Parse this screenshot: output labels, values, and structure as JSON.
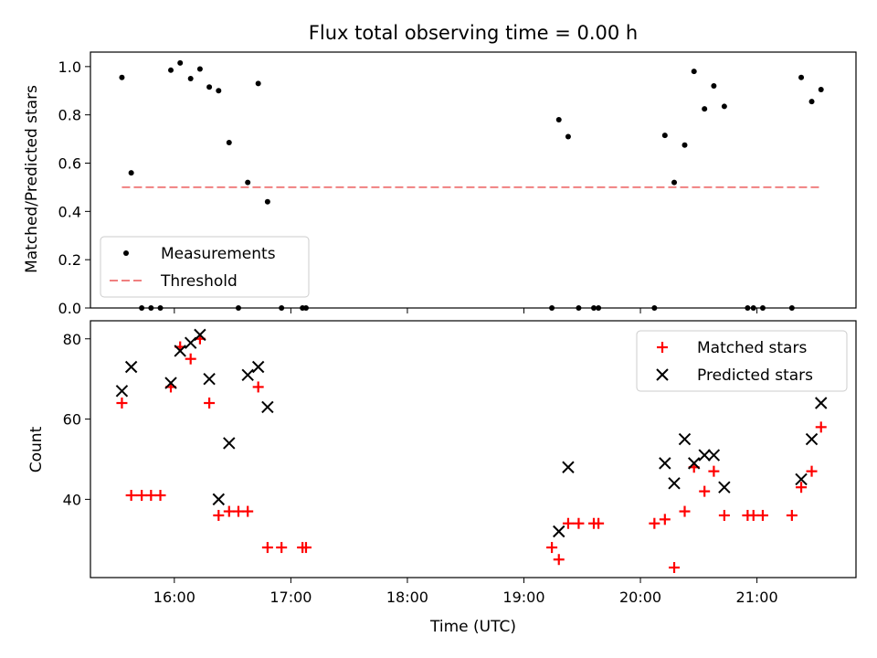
{
  "title": "Flux total observing time = 0.00 h",
  "chart_data": [
    {
      "type": "scatter",
      "ylabel": "Matched/Predicted stars",
      "xlim": [
        15.28,
        21.85
      ],
      "ylim": [
        0.0,
        1.06
      ],
      "yticks": [
        0.0,
        0.2,
        0.4,
        0.6,
        0.8,
        1.0
      ],
      "ytick_labels": [
        "0.0",
        "0.2",
        "0.4",
        "0.6",
        "0.8",
        "1.0"
      ],
      "legend_position": "lower-left",
      "series": [
        {
          "name": "Measurements",
          "color": "#000000",
          "marker": "dot",
          "x": [
            15.55,
            15.63,
            15.72,
            15.8,
            15.88,
            15.97,
            16.05,
            16.14,
            16.22,
            16.3,
            16.38,
            16.47,
            16.55,
            16.63,
            16.72,
            16.8,
            16.92,
            17.1,
            17.13,
            19.24,
            19.3,
            19.38,
            19.47,
            19.6,
            19.64,
            20.12,
            20.21,
            20.29,
            20.38,
            20.46,
            20.55,
            20.63,
            20.72,
            20.92,
            20.97,
            21.05,
            21.3,
            21.38,
            21.47,
            21.55
          ],
          "y": [
            0.955,
            0.56,
            0.0,
            0.0,
            0.0,
            0.985,
            1.015,
            0.95,
            0.99,
            0.915,
            0.9,
            0.685,
            0.0,
            0.52,
            0.93,
            0.44,
            0.0,
            0.0,
            0.0,
            0.0,
            0.78,
            0.71,
            0.0,
            0.0,
            0.0,
            0.0,
            0.715,
            0.52,
            0.675,
            0.98,
            0.825,
            0.92,
            0.835,
            0.0,
            0.0,
            0.0,
            0.0,
            0.955,
            0.855,
            0.905
          ]
        },
        {
          "name": "Threshold",
          "color": "#f08080",
          "style": "dashed",
          "x": [
            15.55,
            21.55
          ],
          "y": [
            0.5,
            0.5
          ]
        }
      ]
    },
    {
      "type": "scatter",
      "xlabel": "Time (UTC)",
      "ylabel": "Count",
      "xlim": [
        15.28,
        21.85
      ],
      "ylim": [
        20.5,
        84.5
      ],
      "xticks": [
        16,
        17,
        18,
        19,
        20,
        21
      ],
      "xtick_labels": [
        "16:00",
        "17:00",
        "18:00",
        "19:00",
        "20:00",
        "21:00"
      ],
      "yticks": [
        40,
        60,
        80
      ],
      "ytick_labels": [
        "40",
        "60",
        "80"
      ],
      "legend_position": "upper-right",
      "series": [
        {
          "name": "Matched stars",
          "color": "#ff0000",
          "marker": "plus",
          "x": [
            15.55,
            15.63,
            15.72,
            15.8,
            15.88,
            15.97,
            16.05,
            16.14,
            16.22,
            16.3,
            16.38,
            16.47,
            16.55,
            16.63,
            16.72,
            16.8,
            16.92,
            17.1,
            17.13,
            19.24,
            19.3,
            19.38,
            19.47,
            19.6,
            19.64,
            20.12,
            20.21,
            20.29,
            20.38,
            20.46,
            20.55,
            20.63,
            20.72,
            20.92,
            20.97,
            21.05,
            21.3,
            21.38,
            21.47,
            21.55
          ],
          "y": [
            64,
            41,
            41,
            41,
            41,
            68,
            78,
            75,
            80,
            64,
            36,
            37,
            37,
            37,
            68,
            28,
            28,
            28,
            28,
            28,
            25,
            34,
            34,
            34,
            34,
            34,
            35,
            23,
            37,
            48,
            42,
            47,
            36,
            36,
            36,
            36,
            36,
            43,
            47,
            58
          ]
        },
        {
          "name": "Predicted stars",
          "color": "#000000",
          "marker": "x",
          "x": [
            15.55,
            15.63,
            15.97,
            16.05,
            16.14,
            16.22,
            16.3,
            16.38,
            16.47,
            16.63,
            16.72,
            16.8,
            19.3,
            19.38,
            20.21,
            20.29,
            20.38,
            20.46,
            20.55,
            20.63,
            20.72,
            21.38,
            21.47,
            21.55
          ],
          "y": [
            67,
            73,
            69,
            77,
            79,
            81,
            70,
            40,
            54,
            71,
            73,
            63,
            32,
            48,
            49,
            44,
            55,
            49,
            51,
            51,
            43,
            45,
            55,
            64
          ]
        }
      ]
    }
  ]
}
